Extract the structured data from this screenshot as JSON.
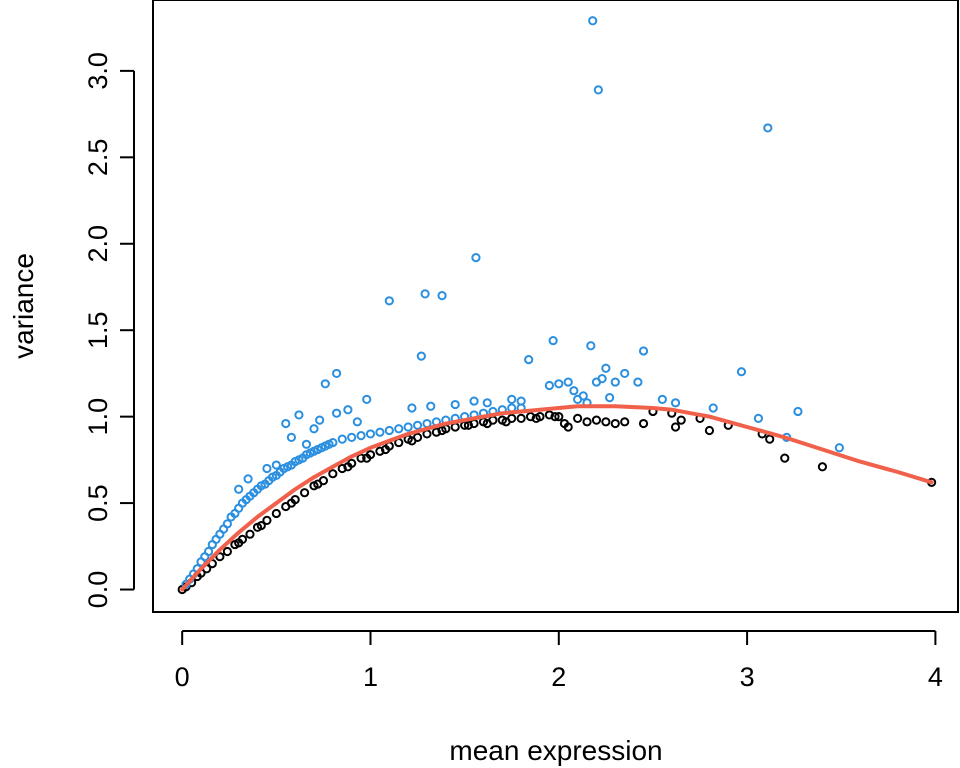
{
  "chart_data": {
    "type": "scatter",
    "xlabel": "mean expression",
    "ylabel": "variance",
    "xlim": [
      -0.155,
      4.12
    ],
    "ylim": [
      -0.13,
      3.41
    ],
    "grid": false,
    "legend": "none",
    "x_ticks": [
      0,
      1,
      2,
      3,
      4
    ],
    "x_tick_labels": [
      "0",
      "1",
      "2",
      "3",
      "4"
    ],
    "y_ticks": [
      0.0,
      0.5,
      1.0,
      1.5,
      2.0,
      2.5,
      3.0
    ],
    "y_tick_labels": [
      "0.0",
      "0.5",
      "1.0",
      "1.5",
      "2.0",
      "2.5",
      "3.0"
    ],
    "colors": {
      "highlighted": "#2b8fe0",
      "other": "#000000",
      "trend": "#f0604a"
    },
    "series": [
      {
        "role": "other",
        "points": [
          [
            0.0,
            0.0
          ],
          [
            0.02,
            0.015
          ],
          [
            0.05,
            0.04
          ],
          [
            0.08,
            0.075
          ],
          [
            0.1,
            0.095
          ],
          [
            0.13,
            0.12
          ],
          [
            0.16,
            0.15
          ],
          [
            0.2,
            0.19
          ],
          [
            0.24,
            0.22
          ],
          [
            0.28,
            0.26
          ],
          [
            0.32,
            0.29
          ],
          [
            0.36,
            0.32
          ],
          [
            0.4,
            0.36
          ],
          [
            0.45,
            0.4
          ],
          [
            0.5,
            0.44
          ],
          [
            0.55,
            0.48
          ],
          [
            0.6,
            0.52
          ],
          [
            0.65,
            0.56
          ],
          [
            0.7,
            0.6
          ],
          [
            0.75,
            0.63
          ],
          [
            0.8,
            0.67
          ],
          [
            0.85,
            0.7
          ],
          [
            0.9,
            0.73
          ],
          [
            0.95,
            0.76
          ],
          [
            1.0,
            0.78
          ],
          [
            1.05,
            0.8
          ],
          [
            1.1,
            0.83
          ],
          [
            1.15,
            0.85
          ],
          [
            1.2,
            0.87
          ],
          [
            1.25,
            0.88
          ],
          [
            1.3,
            0.9
          ],
          [
            1.35,
            0.91
          ],
          [
            1.4,
            0.93
          ],
          [
            1.45,
            0.94
          ],
          [
            1.5,
            0.95
          ],
          [
            1.55,
            0.96
          ],
          [
            1.6,
            0.97
          ],
          [
            1.65,
            0.98
          ],
          [
            1.7,
            0.98
          ],
          [
            1.75,
            0.99
          ],
          [
            1.8,
            0.99
          ],
          [
            1.85,
            1.0
          ],
          [
            1.9,
            1.0
          ],
          [
            1.95,
            1.01
          ],
          [
            2.0,
            1.0
          ],
          [
            2.03,
            0.96
          ],
          [
            2.05,
            0.94
          ],
          [
            2.1,
            0.99
          ],
          [
            2.15,
            0.97
          ],
          [
            2.2,
            0.98
          ],
          [
            2.25,
            0.97
          ],
          [
            2.3,
            0.96
          ],
          [
            2.35,
            0.97
          ],
          [
            2.45,
            0.96
          ],
          [
            2.5,
            1.03
          ],
          [
            2.6,
            1.02
          ],
          [
            2.62,
            0.94
          ],
          [
            2.65,
            0.98
          ],
          [
            2.75,
            0.99
          ],
          [
            2.8,
            0.92
          ],
          [
            2.9,
            0.95
          ],
          [
            3.08,
            0.9
          ],
          [
            3.12,
            0.87
          ],
          [
            3.2,
            0.76
          ],
          [
            3.4,
            0.71
          ],
          [
            3.98,
            0.62
          ],
          [
            0.3,
            0.27
          ],
          [
            0.42,
            0.37
          ],
          [
            0.58,
            0.5
          ],
          [
            0.72,
            0.61
          ],
          [
            0.88,
            0.71
          ],
          [
            0.98,
            0.76
          ],
          [
            1.08,
            0.81
          ],
          [
            1.22,
            0.86
          ],
          [
            1.38,
            0.92
          ],
          [
            1.52,
            0.95
          ],
          [
            1.62,
            0.96
          ],
          [
            1.72,
            0.97
          ],
          [
            1.88,
            0.99
          ],
          [
            1.98,
            1.0
          ]
        ]
      },
      {
        "role": "highlighted",
        "points": [
          [
            0.02,
            0.03
          ],
          [
            0.04,
            0.06
          ],
          [
            0.06,
            0.09
          ],
          [
            0.08,
            0.12
          ],
          [
            0.1,
            0.16
          ],
          [
            0.12,
            0.19
          ],
          [
            0.14,
            0.22
          ],
          [
            0.16,
            0.26
          ],
          [
            0.18,
            0.29
          ],
          [
            0.2,
            0.32
          ],
          [
            0.22,
            0.35
          ],
          [
            0.24,
            0.38
          ],
          [
            0.26,
            0.42
          ],
          [
            0.28,
            0.44
          ],
          [
            0.3,
            0.47
          ],
          [
            0.32,
            0.5
          ],
          [
            0.34,
            0.52
          ],
          [
            0.36,
            0.54
          ],
          [
            0.38,
            0.56
          ],
          [
            0.4,
            0.58
          ],
          [
            0.42,
            0.6
          ],
          [
            0.44,
            0.61
          ],
          [
            0.46,
            0.63
          ],
          [
            0.48,
            0.65
          ],
          [
            0.5,
            0.66
          ],
          [
            0.52,
            0.68
          ],
          [
            0.54,
            0.7
          ],
          [
            0.56,
            0.71
          ],
          [
            0.58,
            0.72
          ],
          [
            0.6,
            0.74
          ],
          [
            0.62,
            0.75
          ],
          [
            0.64,
            0.76
          ],
          [
            0.66,
            0.78
          ],
          [
            0.68,
            0.79
          ],
          [
            0.7,
            0.8
          ],
          [
            0.72,
            0.81
          ],
          [
            0.74,
            0.82
          ],
          [
            0.76,
            0.83
          ],
          [
            0.78,
            0.84
          ],
          [
            0.8,
            0.85
          ],
          [
            0.85,
            0.87
          ],
          [
            0.9,
            0.88
          ],
          [
            0.95,
            0.89
          ],
          [
            1.0,
            0.9
          ],
          [
            1.05,
            0.91
          ],
          [
            1.1,
            0.92
          ],
          [
            1.15,
            0.93
          ],
          [
            1.2,
            0.94
          ],
          [
            1.25,
            0.95
          ],
          [
            1.3,
            0.96
          ],
          [
            1.35,
            0.97
          ],
          [
            1.4,
            0.98
          ],
          [
            1.45,
            0.99
          ],
          [
            1.5,
            1.0
          ],
          [
            1.55,
            1.01
          ],
          [
            1.6,
            1.02
          ],
          [
            1.65,
            1.03
          ],
          [
            1.7,
            1.04
          ],
          [
            1.75,
            1.05
          ],
          [
            1.8,
            1.05
          ],
          [
            0.3,
            0.58
          ],
          [
            0.35,
            0.64
          ],
          [
            0.45,
            0.7
          ],
          [
            0.5,
            0.72
          ],
          [
            0.55,
            0.96
          ],
          [
            0.58,
            0.88
          ],
          [
            0.62,
            1.01
          ],
          [
            0.66,
            0.84
          ],
          [
            0.7,
            0.93
          ],
          [
            0.73,
            0.98
          ],
          [
            0.76,
            1.19
          ],
          [
            0.82,
            1.25
          ],
          [
            0.82,
            1.02
          ],
          [
            0.88,
            1.04
          ],
          [
            0.93,
            0.97
          ],
          [
            0.98,
            1.1
          ],
          [
            1.1,
            1.67
          ],
          [
            1.22,
            1.05
          ],
          [
            1.27,
            1.35
          ],
          [
            1.29,
            1.71
          ],
          [
            1.32,
            1.06
          ],
          [
            1.38,
            1.7
          ],
          [
            1.45,
            1.07
          ],
          [
            1.55,
            1.09
          ],
          [
            1.56,
            1.92
          ],
          [
            1.62,
            1.08
          ],
          [
            1.75,
            1.1
          ],
          [
            1.8,
            1.09
          ],
          [
            1.84,
            1.33
          ],
          [
            1.95,
            1.18
          ],
          [
            1.97,
            1.44
          ],
          [
            2.0,
            1.19
          ],
          [
            2.05,
            1.2
          ],
          [
            2.08,
            1.15
          ],
          [
            2.1,
            1.1
          ],
          [
            2.13,
            1.12
          ],
          [
            2.15,
            1.08
          ],
          [
            2.17,
            1.41
          ],
          [
            2.18,
            3.29
          ],
          [
            2.2,
            1.2
          ],
          [
            2.21,
            2.89
          ],
          [
            2.23,
            1.22
          ],
          [
            2.25,
            1.28
          ],
          [
            2.27,
            1.11
          ],
          [
            2.3,
            1.2
          ],
          [
            2.35,
            1.25
          ],
          [
            2.42,
            1.2
          ],
          [
            2.45,
            1.38
          ],
          [
            2.55,
            1.1
          ],
          [
            2.62,
            1.08
          ],
          [
            2.82,
            1.05
          ],
          [
            2.97,
            1.26
          ],
          [
            3.06,
            0.99
          ],
          [
            3.11,
            2.67
          ],
          [
            3.21,
            0.88
          ],
          [
            3.27,
            1.03
          ],
          [
            3.49,
            0.82
          ]
        ]
      }
    ],
    "trend_line": {
      "x": [
        0.0,
        0.05,
        0.1,
        0.2,
        0.3,
        0.4,
        0.5,
        0.6,
        0.7,
        0.8,
        0.9,
        1.0,
        1.1,
        1.2,
        1.3,
        1.4,
        1.5,
        1.6,
        1.7,
        1.8,
        1.9,
        2.0,
        2.1,
        2.2,
        2.3,
        2.4,
        2.5,
        2.6,
        2.7,
        2.8,
        2.9,
        3.0,
        3.2,
        3.4,
        3.6,
        3.8,
        3.98
      ],
      "y": [
        0.0,
        0.06,
        0.12,
        0.23,
        0.33,
        0.42,
        0.5,
        0.58,
        0.65,
        0.71,
        0.77,
        0.82,
        0.86,
        0.9,
        0.93,
        0.96,
        0.98,
        1.0,
        1.02,
        1.03,
        1.04,
        1.05,
        1.06,
        1.06,
        1.06,
        1.055,
        1.05,
        1.04,
        1.02,
        1.0,
        0.97,
        0.94,
        0.88,
        0.81,
        0.74,
        0.68,
        0.62
      ]
    }
  }
}
